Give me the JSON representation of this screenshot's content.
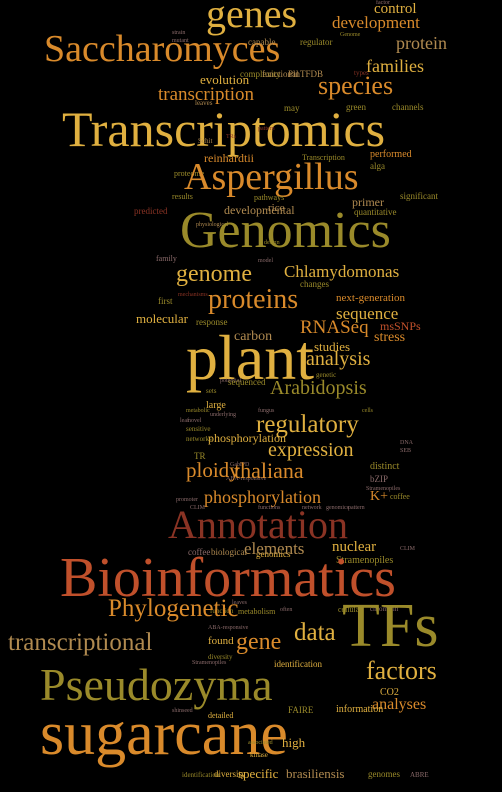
{
  "palette": {
    "gold": "#E0B040",
    "orange": "#D98A2B",
    "rust": "#C0502B",
    "darkred": "#8A3324",
    "olive": "#9A8A2A",
    "tan": "#B08A50",
    "brown": "#7A5230",
    "mauve": "#8A6A6A"
  },
  "words": [
    "genes",
    "Saccharomyces",
    "development",
    "control",
    "protein",
    "families",
    "species",
    "evolution",
    "transcription",
    "Transcriptomics",
    "Aspergillus",
    "reinhardtii",
    "performed",
    "Genomics",
    "genome",
    "Chlamydomonas",
    "proteins",
    "next-generation",
    "sequence",
    "plant",
    "RNASeq",
    "carbon",
    "studies",
    "stress",
    "analysis",
    "Arabidopsis",
    "regulatory",
    "expression",
    "ploidy",
    "thaliana",
    "phosphorylation",
    "Annotation",
    "Bioinformatics",
    "elements",
    "nuclear",
    "Phylogenetic",
    "gene",
    "data",
    "transcriptional",
    "TFs",
    "Pseudozyma",
    "factors",
    "analyses",
    "sugarcane",
    "high",
    "specific",
    "brasiliensis",
    "genomes",
    "ABRE",
    "tomato",
    "regulators",
    "information",
    "FAIRE",
    "detailed",
    "associated",
    "kinase",
    "identification",
    "diversity",
    "metabolism",
    "function",
    "cellular",
    "chromatin",
    "CO2",
    "found",
    "molecular",
    "response",
    "mechanisms",
    "changes",
    "first",
    "unknown",
    "model",
    "design",
    "developmental",
    "primer",
    "rice",
    "pathways",
    "quantitative",
    "significant",
    "predicted",
    "physiological",
    "family",
    "alga",
    "Transcription",
    "proteome",
    "results",
    "eukaryotic",
    "green",
    "may",
    "leaves",
    "complexity",
    "functional",
    "PlnTFDB",
    "structure",
    "capable",
    "regulator",
    "Genome",
    "strain",
    "mutant",
    "factor",
    "types",
    "channels",
    "flowering",
    "sequenced",
    "potential",
    "genetic",
    "sets",
    "large",
    "metabolic",
    "underlying",
    "cells",
    "leaf",
    "sensitive",
    "networks",
    "TR",
    "GabiPD",
    "K+",
    "bZIP",
    "distinct",
    "coffee",
    "biological",
    "msSNPs",
    "genomics",
    "network",
    "functions",
    "promoter",
    "CLIM",
    "Stramenopiles",
    "ABA-responsive",
    "novel",
    "fungus",
    "DNA",
    "SEB",
    "often",
    "shinseed",
    "Schit",
    "TRs",
    "pattern"
  ]
}
